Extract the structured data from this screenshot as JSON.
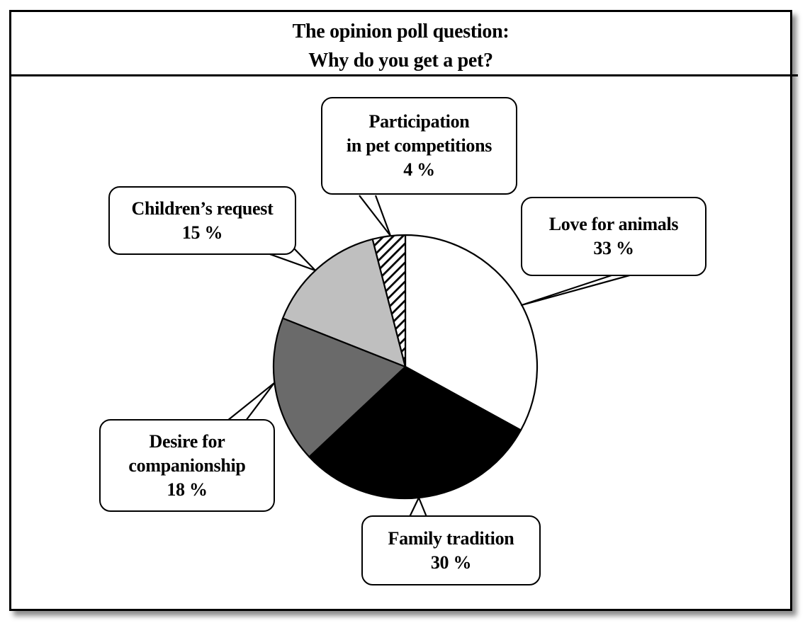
{
  "title": {
    "line1": "The opinion poll question:",
    "line2": "Why do you get a pet?"
  },
  "chart_data": {
    "type": "pie",
    "title": "The opinion poll question: Why do you get a pet?",
    "start_angle_deg": 0,
    "direction": "clockwise",
    "center": [
      572,
      518
    ],
    "radius": 186,
    "stroke_color": "#000000",
    "slices": [
      {
        "label": "Love for animals",
        "value": 33,
        "display": "33 %",
        "fill": "#ffffff",
        "pattern": "solid"
      },
      {
        "label": "Family tradition",
        "value": 30,
        "display": "30 %",
        "fill": "#000000",
        "pattern": "solid"
      },
      {
        "label": "Desire for companionship",
        "value": 18,
        "display": "18 %",
        "fill": "#6a6a6a",
        "pattern": "solid"
      },
      {
        "label": "Children’s request",
        "value": 15,
        "display": "15 %",
        "fill": "#bfbfbf",
        "pattern": "solid"
      },
      {
        "label": "Participation in pet competitions",
        "value": 4,
        "display": "4 %",
        "fill": "#ffffff",
        "pattern": "diagonal-hatch"
      }
    ]
  },
  "callouts": [
    {
      "id": "participation",
      "lines": [
        "Participation",
        "in pet competitions",
        "4 %"
      ]
    },
    {
      "id": "children",
      "lines": [
        "Children’s request",
        "15 %"
      ]
    },
    {
      "id": "love",
      "lines": [
        "Love for animals",
        "33 %"
      ]
    },
    {
      "id": "desire",
      "lines": [
        "Desire for",
        "companionship",
        "18 %"
      ]
    },
    {
      "id": "family",
      "lines": [
        "Family tradition",
        "30 %"
      ]
    }
  ]
}
